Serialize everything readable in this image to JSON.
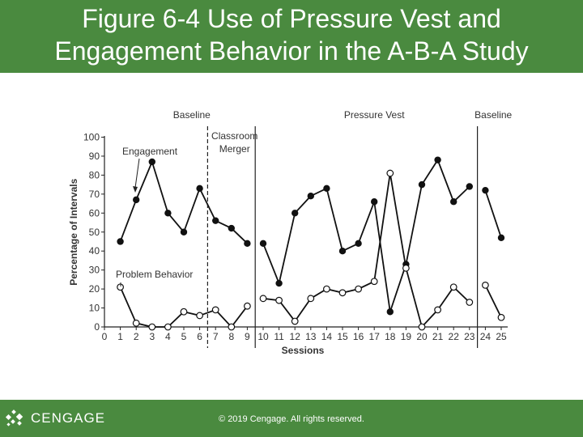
{
  "slide": {
    "title_line1": "Figure 6-4 Use of Pressure Vest and",
    "title_line2": "Engagement Behavior in the A-B-A Study",
    "logo_text": "CENGAGE",
    "copyright": "© 2019 Cengage. All rights reserved.",
    "colors": {
      "band": "#4a8a3f",
      "text": "#ffffff"
    }
  },
  "chart_data": {
    "type": "line",
    "title": "",
    "xlabel": "Sessions",
    "ylabel": "Percentage of Intervals",
    "xlim": [
      0,
      25
    ],
    "ylim": [
      0,
      100
    ],
    "x_ticks": [
      "0",
      "1",
      "2",
      "3",
      "4",
      "5",
      "6",
      "7",
      "8",
      "9",
      "10",
      "11",
      "12",
      "13",
      "14",
      "15",
      "16",
      "17",
      "18",
      "19",
      "20",
      "21",
      "22",
      "23",
      "24",
      "25"
    ],
    "y_ticks": [
      "0",
      "10",
      "20",
      "30",
      "40",
      "50",
      "60",
      "70",
      "80",
      "90",
      "100"
    ],
    "phase_labels": [
      {
        "label": "Baseline",
        "session": 5.5
      },
      {
        "label": "Classroom",
        "session": 8.2
      },
      {
        "label": "Merger",
        "session": 8.2
      },
      {
        "label": "Pressure Vest",
        "session": 17
      },
      {
        "label": "Baseline",
        "session": 24.5
      }
    ],
    "phase_dividers": [
      {
        "after_session": 6.5,
        "style": "dashed"
      },
      {
        "after_session": 9.5,
        "style": "solid"
      },
      {
        "after_session": 23.5,
        "style": "solid"
      }
    ],
    "annotations": [
      "Engagement",
      "Problem Behavior"
    ],
    "series": [
      {
        "name": "Engagement",
        "marker": "filled",
        "segments": [
          {
            "x": [
              1,
              2,
              3,
              4,
              5,
              6,
              7,
              8,
              9
            ],
            "y": [
              45,
              67,
              87,
              60,
              50,
              73,
              56,
              52,
              44
            ]
          },
          {
            "x": [
              10,
              11,
              12,
              13,
              14,
              15,
              16,
              17,
              18,
              19,
              20,
              21,
              22,
              23
            ],
            "y": [
              44,
              23,
              60,
              69,
              73,
              40,
              44,
              66,
              8,
              33,
              75,
              88,
              66,
              74
            ]
          },
          {
            "x": [
              24,
              25
            ],
            "y": [
              72,
              47
            ]
          }
        ]
      },
      {
        "name": "Problem Behavior",
        "marker": "open",
        "segments": [
          {
            "x": [
              1,
              2,
              3,
              4,
              5,
              6,
              7,
              8,
              9
            ],
            "y": [
              21,
              2,
              0,
              0,
              8,
              6,
              9,
              0,
              11
            ]
          },
          {
            "x": [
              10,
              11,
              12,
              13,
              14,
              15,
              16,
              17,
              18,
              19,
              20,
              21,
              22,
              23
            ],
            "y": [
              15,
              14,
              3,
              15,
              20,
              18,
              20,
              24,
              81,
              31,
              0,
              9,
              21,
              13
            ]
          },
          {
            "x": [
              24,
              25
            ],
            "y": [
              22,
              5
            ]
          }
        ]
      }
    ]
  }
}
